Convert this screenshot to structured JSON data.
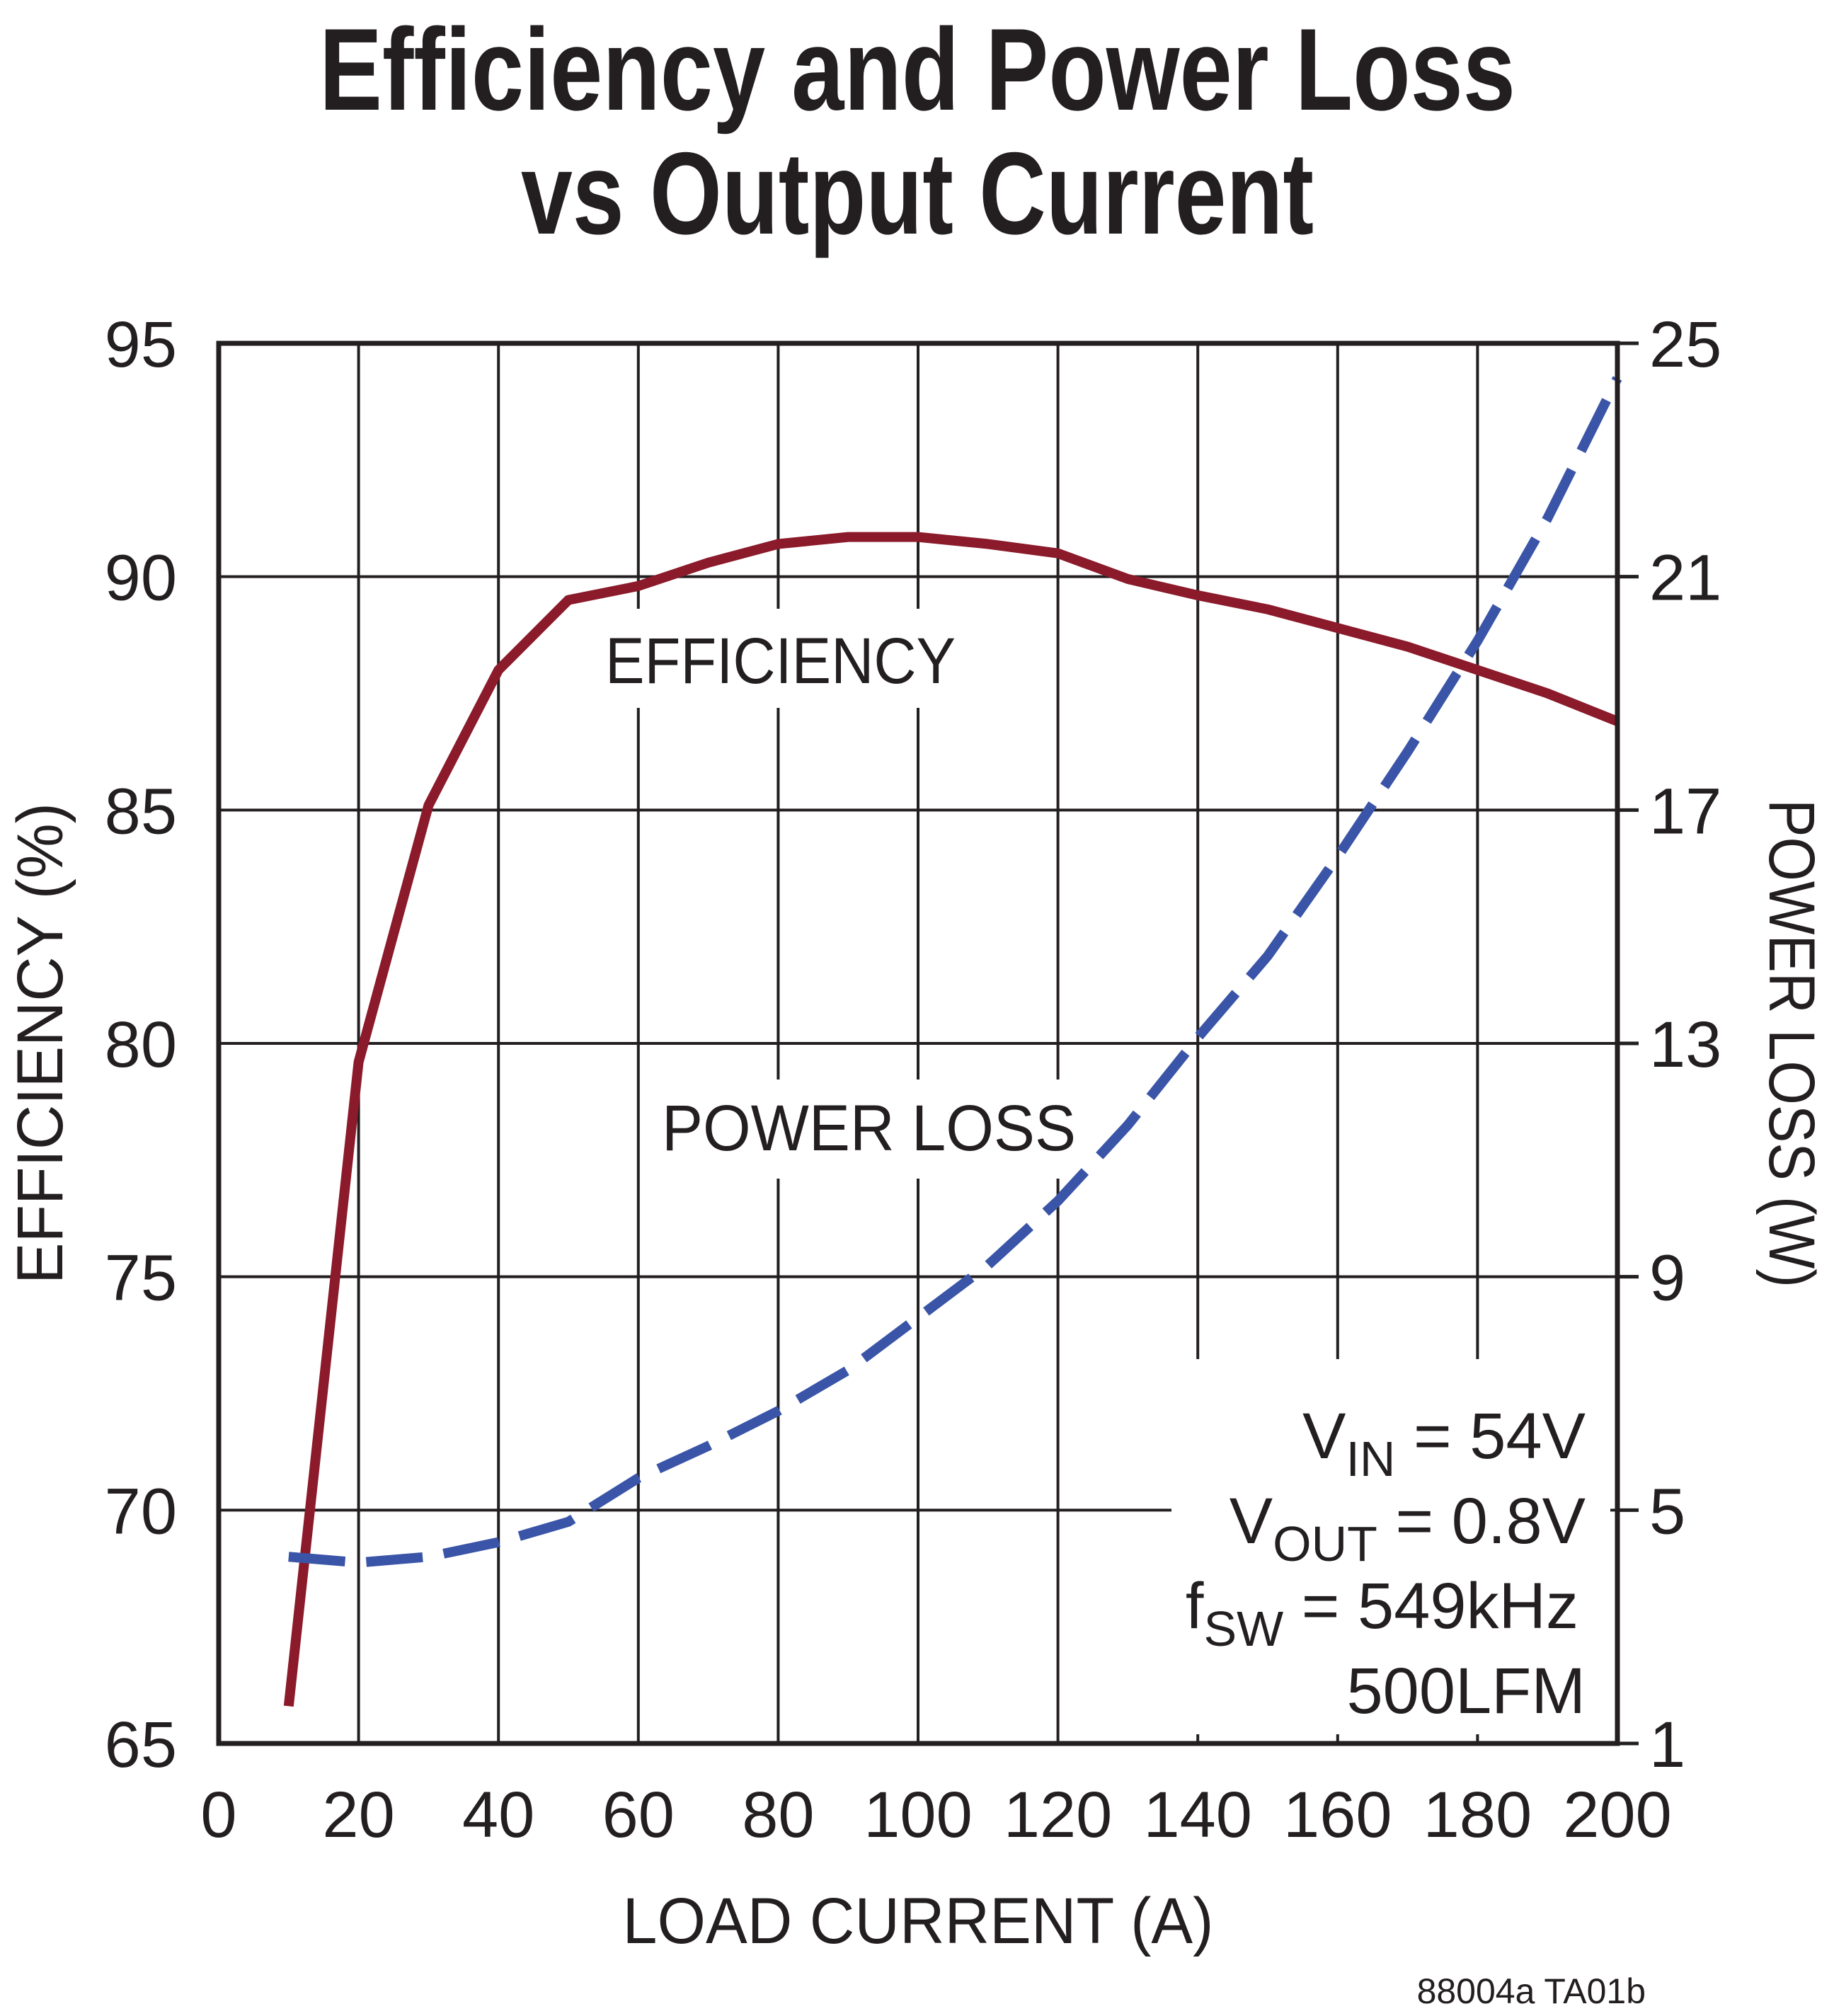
{
  "chart_data": {
    "type": "line",
    "title": [
      "Efficiency and Power Loss",
      "vs Output Current"
    ],
    "xlabel": "LOAD CURRENT (A)",
    "ylabel_left": "EFFICIENCY (%)",
    "ylabel_right": "POWER LOSS (W)",
    "xlim": [
      0,
      200
    ],
    "ylim_left": [
      65,
      95
    ],
    "ylim_right": [
      1,
      25
    ],
    "x_ticks": [
      "0",
      "20",
      "40",
      "60",
      "80",
      "100",
      "120",
      "140",
      "160",
      "180",
      "200"
    ],
    "y_left_ticks": [
      "65",
      "70",
      "75",
      "80",
      "85",
      "90",
      "95"
    ],
    "y_right_ticks": [
      "1",
      "5",
      "9",
      "13",
      "17",
      "21",
      "25"
    ],
    "grid": true,
    "x": [
      10,
      20,
      30,
      40,
      50,
      60,
      70,
      80,
      90,
      100,
      110,
      120,
      130,
      140,
      150,
      160,
      170,
      180,
      190,
      200
    ],
    "series": [
      {
        "name": "EFFICIENCY",
        "axis": "left",
        "color": "#8b1a2b",
        "style": "solid",
        "values": [
          65.8,
          79.6,
          85.1,
          88.0,
          89.5,
          89.8,
          90.3,
          90.7,
          90.85,
          90.85,
          90.7,
          90.5,
          89.95,
          89.6,
          89.3,
          88.9,
          88.5,
          88.0,
          87.5,
          86.9
        ]
      },
      {
        "name": "POWER LOSS",
        "axis": "right",
        "color": "#3a55a8",
        "style": "dashed",
        "values": [
          4.2,
          4.1,
          4.2,
          4.45,
          4.8,
          5.55,
          6.1,
          6.7,
          7.4,
          8.3,
          9.2,
          10.3,
          11.6,
          13.1,
          14.5,
          16.2,
          18.0,
          19.9,
          22.0,
          24.4
        ]
      }
    ],
    "annotations": {
      "vin": {
        "main": "V",
        "sub": "IN",
        "rest": " = 54V"
      },
      "vout": {
        "main": "V",
        "sub": "OUT",
        "rest": " = 0.8V"
      },
      "fsw": {
        "main": "f",
        "sub": "SW",
        "rest": " = 549kHz"
      },
      "airflow": "500LFM"
    },
    "footnote": "88004a TA01b"
  }
}
